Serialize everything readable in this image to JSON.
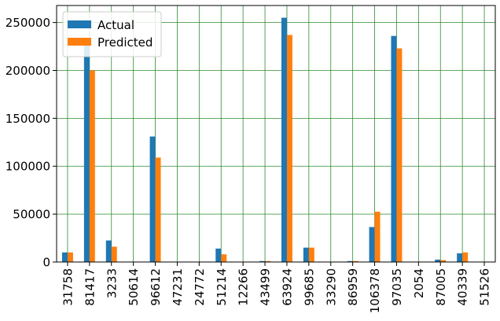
{
  "chart_data": {
    "type": "bar",
    "title": "",
    "xlabel": "",
    "ylabel": "",
    "categories": [
      "31758",
      "81417",
      "3233",
      "50614",
      "96612",
      "47231",
      "24772",
      "51214",
      "12266",
      "43499",
      "63924",
      "99685",
      "33290",
      "86959",
      "106378",
      "97035",
      "2054",
      "87005",
      "40339",
      "51526"
    ],
    "series": [
      {
        "name": "Actual",
        "color": "#1f77b4",
        "values": [
          10000,
          229000,
          22500,
          0,
          131000,
          0,
          0,
          14000,
          0,
          1000,
          255000,
          15000,
          0,
          1000,
          36500,
          236000,
          0,
          2500,
          9000,
          0
        ]
      },
      {
        "name": "Predicted",
        "color": "#ff7f0e",
        "values": [
          10000,
          200000,
          16000,
          0,
          109000,
          0,
          0,
          8000,
          0,
          1000,
          237000,
          15000,
          0,
          1000,
          52500,
          223000,
          0,
          2000,
          10000,
          0
        ]
      }
    ],
    "ylim": [
      0,
      267750
    ],
    "yticks": [
      0,
      50000,
      100000,
      150000,
      200000,
      250000
    ],
    "ytick_labels": [
      "0",
      "50000",
      "100000",
      "150000",
      "200000",
      "250000"
    ],
    "grid": true,
    "grid_color": "#2e8b2e",
    "legend_position": "top-left"
  }
}
